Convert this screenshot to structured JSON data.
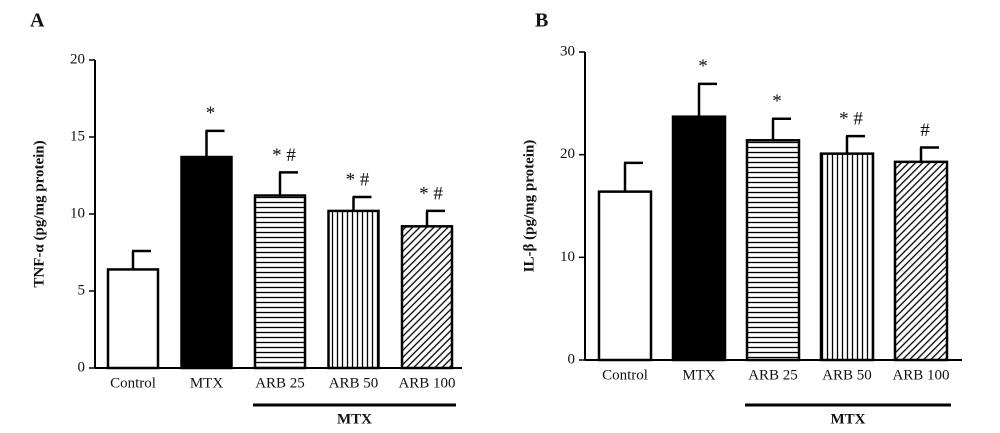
{
  "chart_data": [
    {
      "type": "bar",
      "panel": "A",
      "ylabel": "TNF-α (pg/mg protein)",
      "categories": [
        "Control",
        "MTX",
        "ARB 25",
        "ARB 50",
        "ARB 100"
      ],
      "values": [
        6.4,
        13.7,
        11.2,
        10.2,
        9.2
      ],
      "errors": [
        1.2,
        1.7,
        1.5,
        0.9,
        1.0
      ],
      "annotations": [
        null,
        "*",
        "* #",
        "* #",
        "* #"
      ],
      "fills": [
        "#ffffff",
        "#000000",
        "horizontal",
        "vertical",
        "diagonal"
      ],
      "group_label": "MTX",
      "ylim": [
        0,
        20
      ],
      "yticks": [
        0,
        5,
        10,
        15,
        20
      ]
    },
    {
      "type": "bar",
      "panel": "B",
      "ylabel": "IL-β (pg/mg protein)",
      "categories": [
        "Control",
        "MTX",
        "ARB 25",
        "ARB 50",
        "ARB 100"
      ],
      "values": [
        16.4,
        23.7,
        21.4,
        20.1,
        19.3
      ],
      "errors": [
        2.8,
        3.2,
        2.1,
        1.7,
        1.4
      ],
      "annotations": [
        null,
        "*",
        "*",
        "* #",
        "#"
      ],
      "fills": [
        "#ffffff",
        "#000000",
        "horizontal",
        "vertical",
        "diagonal"
      ],
      "group_label": "MTX",
      "ylim": [
        0,
        30
      ],
      "yticks": [
        0,
        10,
        20,
        30
      ]
    }
  ]
}
